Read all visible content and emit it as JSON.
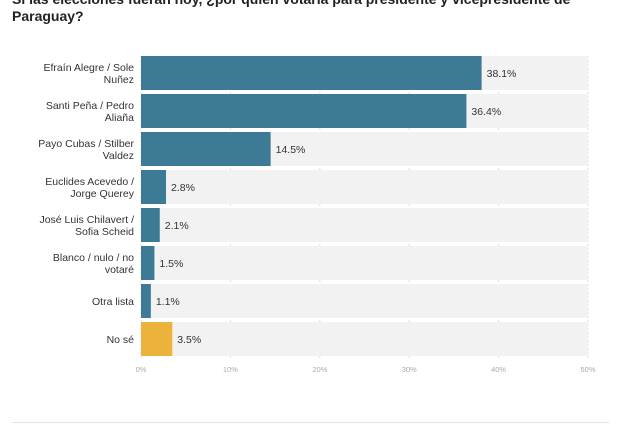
{
  "title": "Si las elecciones fueran hoy, ¿por quién votaría para presidente y vicepresidente de Paraguay?",
  "chart_data": {
    "type": "bar",
    "orientation": "horizontal",
    "title": "Si las elecciones fueran hoy, ¿por quién votaría para presidente y vicepresidente de Paraguay?",
    "categories": [
      [
        "Efraín Alegre / Sole",
        "Nuñez"
      ],
      [
        "Santi Peña / Pedro",
        "Aliaña"
      ],
      [
        "Payo Cubas / Stilber",
        "Valdez"
      ],
      [
        "Euclides Acevedo /",
        "Jorge Querey"
      ],
      [
        "José Luis Chilavert /",
        "Sofia Scheid"
      ],
      [
        "Blanco / nulo / no",
        "votaré"
      ],
      [
        "Otra lista"
      ],
      [
        "No sé"
      ]
    ],
    "values": [
      38.1,
      36.4,
      14.5,
      2.8,
      2.1,
      1.5,
      1.1,
      3.5
    ],
    "value_labels": [
      "38.1%",
      "36.4%",
      "14.5%",
      "2.8%",
      "2.1%",
      "1.5%",
      "1.1%",
      "3.5%"
    ],
    "xlim": [
      0,
      50
    ],
    "ticks": [
      0,
      10,
      20,
      30,
      40,
      50
    ],
    "tick_labels": [
      "0%",
      "10%",
      "20%",
      "30%",
      "40%",
      "50%"
    ],
    "colors": [
      "#3c7a96",
      "#3c7a96",
      "#3c7a96",
      "#3c7a96",
      "#3c7a96",
      "#3c7a96",
      "#3c7a96",
      "#ebb33c"
    ],
    "track_color": "#f2f2f2",
    "grid": true
  }
}
